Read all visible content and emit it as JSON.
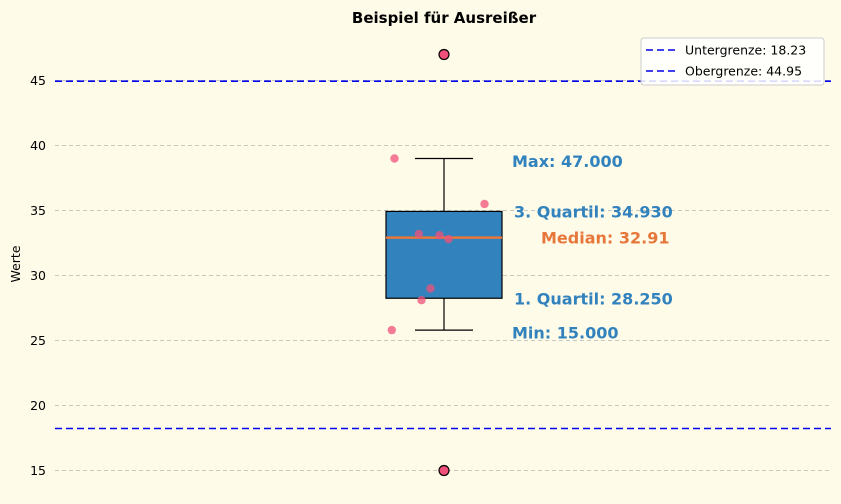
{
  "chart_data": {
    "type": "box",
    "title": "Beispiel für Ausreißer",
    "xlabel": "",
    "ylabel": "Werte",
    "ylim": [
      13.5,
      48.5
    ],
    "yticks": [
      15,
      20,
      25,
      30,
      35,
      40,
      45
    ],
    "grid": "horizontal dashed",
    "box": {
      "q1": 28.25,
      "median": 32.91,
      "q3": 34.93,
      "whisker_low": 25.8,
      "whisker_high": 39.0
    },
    "points": [
      {
        "x": -0.55,
        "y": 39.0
      },
      {
        "x": 0.45,
        "y": 35.5
      },
      {
        "x": -0.28,
        "y": 33.2
      },
      {
        "x": -0.05,
        "y": 33.1
      },
      {
        "x": 0.05,
        "y": 32.8
      },
      {
        "x": -0.15,
        "y": 29.0
      },
      {
        "x": -0.25,
        "y": 28.1
      },
      {
        "x": -0.58,
        "y": 25.8
      }
    ],
    "outliers": [
      47.0,
      15.0
    ],
    "reference_lines": [
      {
        "name": "Untergrenze: 18.23",
        "value": 18.23
      },
      {
        "name": "Obergrenze: 44.95",
        "value": 44.95
      }
    ],
    "annotations": [
      {
        "label": "Max: 47.000",
        "y": 38.8,
        "color": "#3182bd"
      },
      {
        "label": "3. Quartil: 34.930",
        "y": 34.93,
        "color": "#3182bd"
      },
      {
        "label": "Median: 32.91",
        "y": 32.91,
        "color": "#e6773a"
      },
      {
        "label": "1. Quartil: 28.250",
        "y": 28.25,
        "color": "#3182bd"
      },
      {
        "label": "Min: 15.000",
        "y": 25.6,
        "color": "#3182bd"
      }
    ],
    "legend_position": "top-right",
    "colors": {
      "background": "#fffbe9",
      "box_fill": "#3182bd",
      "median_line": "#e6773a",
      "point": "#f0507a",
      "reference_line": "#0000ee",
      "grid": "#c8c8c0"
    }
  }
}
